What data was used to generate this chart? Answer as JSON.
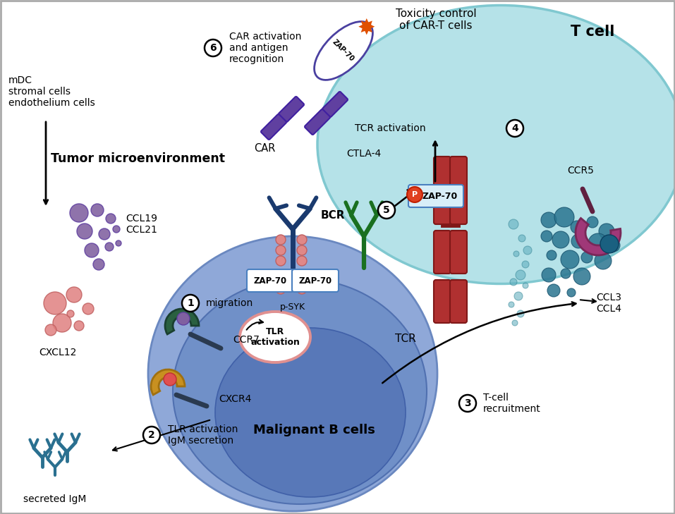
{
  "bg_color": "#ffffff",
  "texts": {
    "t_cell": "T cell",
    "b_cell": "Malignant B cells",
    "tumor_micro": "Tumor microenvironment",
    "bcr": "BCR",
    "tcr": "TCR",
    "zap70_bcr1": "ZAP-70",
    "zap70_bcr2": "ZAP-70",
    "zap70_tcr": "ZAP-70",
    "ccr7": "CCR7",
    "cxcr4": "CXCR4",
    "ccr5": "CCR5",
    "ctla4": "CTLA-4",
    "car": "CAR",
    "psyk": "p-SYK",
    "tlr": "TLR\nactivation",
    "ccl19_21": "CCL19\nCCL21",
    "cxcl12": "CXCL12",
    "ccl3_4": "CCL3\nCCL4",
    "secreted_igm": "secreted IgM",
    "mdc": "mDC\nstromal cells\nendothelium cells",
    "toxicity": "Toxicity control\nof CAR-T cells",
    "tcr_activation": "TCR activation",
    "migration": "migration",
    "t_cell_recruitment": "T-cell\nrecruitment",
    "tlr_igm": "TLR activation\nIgM secretion",
    "car_activation": "CAR activation\nand antigen\nrecognition",
    "p_label": "P",
    "zap70_car": "ZAP-70"
  },
  "colors": {
    "dark_blue": "#1a3a6e",
    "t_cell_fill": "#b5e2e8",
    "t_cell_edge": "#80c8d0",
    "b_cell_outer": "#8fa8d8",
    "b_cell_mid": "#7090c8",
    "b_cell_inner": "#5878b8",
    "tcr_red": "#c03030",
    "tcr_dark": "#8b1818",
    "green_receptor": "#2d7a30",
    "gold_receptor": "#c89020",
    "teal_receptor": "#2a6a50",
    "pink_receptor": "#a04080",
    "purple_car": "#6040a0",
    "purple_dark": "#4020a0",
    "salmon": "#e08888",
    "salmon_edge": "#c06060",
    "orange_p": "#e04020",
    "teal_dots": "#2a7590",
    "teal_dark_dots": "#1a5570",
    "purple_dots": "#8060a0",
    "purple_dark_dots": "#6040a0",
    "pink_dots": "#e08080",
    "pink_dark_dots": "#c06060",
    "steel_blue": "#4a7090",
    "zap_fill": "#d8eef8",
    "zap_edge": "#4a80c0"
  }
}
